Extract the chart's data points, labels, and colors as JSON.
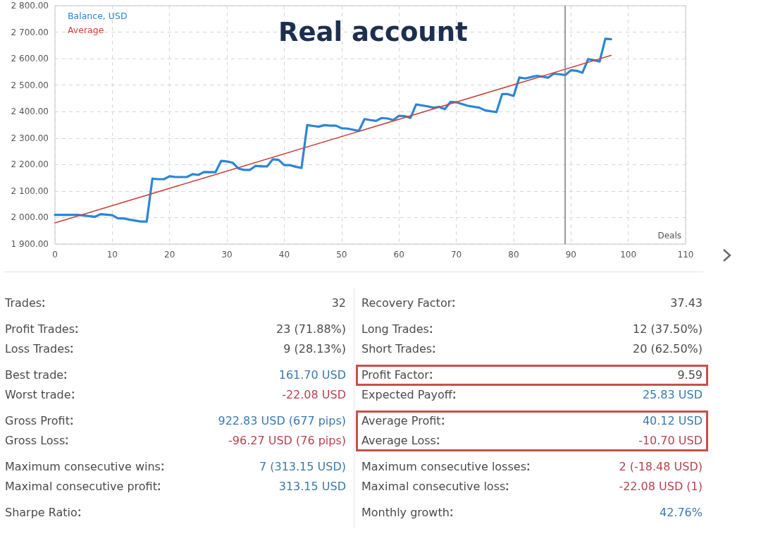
{
  "chart_data": [
    {
      "type": "line",
      "title": "Real account",
      "xlabel": "Deals",
      "series": [
        {
          "name": "Balance, USD",
          "color": "#2b86d6",
          "x": [
            0,
            4,
            7,
            8,
            10,
            11,
            12,
            13,
            15,
            16,
            17,
            18,
            19,
            20,
            21,
            23,
            24,
            25,
            26,
            28,
            29,
            30,
            31,
            32,
            33,
            34,
            35,
            36,
            37,
            38,
            39,
            40,
            41,
            42,
            43,
            44,
            45,
            46,
            47,
            48,
            49,
            50,
            51,
            53,
            54,
            55,
            56,
            57,
            58,
            59,
            60,
            61,
            62,
            63,
            65,
            66,
            67,
            68,
            69,
            70,
            72,
            74,
            75,
            77,
            78,
            79,
            80,
            81,
            82,
            84,
            85,
            86,
            87,
            88,
            89,
            90,
            91,
            92,
            93,
            94,
            95,
            96,
            97
          ],
          "values": [
            2010,
            2010,
            2003,
            2013,
            2009,
            1997,
            1997,
            1992,
            1985,
            1985,
            2147,
            2145,
            2145,
            2156,
            2153,
            2153,
            2164,
            2161,
            2172,
            2171,
            2214,
            2212,
            2207,
            2185,
            2180,
            2180,
            2195,
            2193,
            2193,
            2220,
            2218,
            2198,
            2198,
            2192,
            2187,
            2349,
            2346,
            2343,
            2349,
            2347,
            2347,
            2337,
            2336,
            2327,
            2372,
            2368,
            2365,
            2376,
            2374,
            2368,
            2384,
            2383,
            2376,
            2427,
            2420,
            2415,
            2418,
            2409,
            2437,
            2435,
            2422,
            2415,
            2405,
            2398,
            2466,
            2466,
            2459,
            2529,
            2525,
            2535,
            2532,
            2528,
            2543,
            2541,
            2538,
            2556,
            2554,
            2547,
            2598,
            2594,
            2589,
            2675,
            2673
          ]
        },
        {
          "name": "Average",
          "color": "#c9453b",
          "x": [
            0,
            97
          ],
          "values": [
            1980,
            2612
          ]
        }
      ],
      "xlim": [
        0,
        110
      ],
      "xticks": [
        0,
        10,
        20,
        30,
        40,
        50,
        60,
        70,
        80,
        90,
        100,
        110
      ],
      "ylim": [
        1900,
        2800
      ],
      "yticks": [
        {
          "value": 1900,
          "label": "1 900.00"
        },
        {
          "value": 2000,
          "label": "2 000.00"
        },
        {
          "value": 2100,
          "label": "2 100.00"
        },
        {
          "value": 2200,
          "label": "2 200.00"
        },
        {
          "value": 2300,
          "label": "2 300.00"
        },
        {
          "value": 2400,
          "label": "2 400.00"
        },
        {
          "value": 2500,
          "label": "2 500.00"
        },
        {
          "value": 2600,
          "label": "2 600.00"
        },
        {
          "value": 2700,
          "label": "2 700.00"
        },
        {
          "value": 2800,
          "label": "2 800.00"
        }
      ],
      "grid": true,
      "legend": "top left",
      "ref_lines": [
        {
          "axis": "x",
          "value": 89,
          "color": "#7a7a7a"
        }
      ]
    },
    {
      "type": "other",
      "categories": [
        "Trades",
        "Profit Trades",
        "Loss Trades",
        "Best trade",
        "Worst trade",
        "Gross Profit",
        "Gross Loss",
        "Maximum consecutive wins",
        "Maximal consecutive profit",
        "Sharpe Ratio",
        "Recovery Factor",
        "Long Trades",
        "Short Trades",
        "Profit Factor",
        "Expected Payoff",
        "Average Profit",
        "Average Loss",
        "Maximum consecutive losses",
        "Maximal consecutive loss",
        "Monthly growth"
      ],
      "value_labels": [
        "32",
        "23 (71.88%)",
        "9 (28.13%)",
        "161.70 USD",
        "-22.08 USD",
        "922.83 USD (677 pips)",
        "-96.27 USD (76 pips)",
        "7 (313.15 USD)",
        "313.15 USD",
        null,
        "37.43",
        "12 (37.50%)",
        "20 (62.50%)",
        "9.59",
        "25.83 USD",
        "40.12 USD",
        "-10.70 USD",
        "2 (-18.48 USD)",
        "-22.08 USD (1)",
        "42.76%"
      ],
      "colors": [
        null,
        null,
        null,
        "#3a78ad",
        "#b8404f",
        "#3a78ad",
        "#b8404f",
        "#3a78ad",
        "#3a78ad",
        null,
        null,
        null,
        null,
        null,
        "#3a78ad",
        "#3a78ad",
        "#b8404f",
        "#b8404f",
        "#b8404f",
        "#3a78ad"
      ]
    }
  ]
}
